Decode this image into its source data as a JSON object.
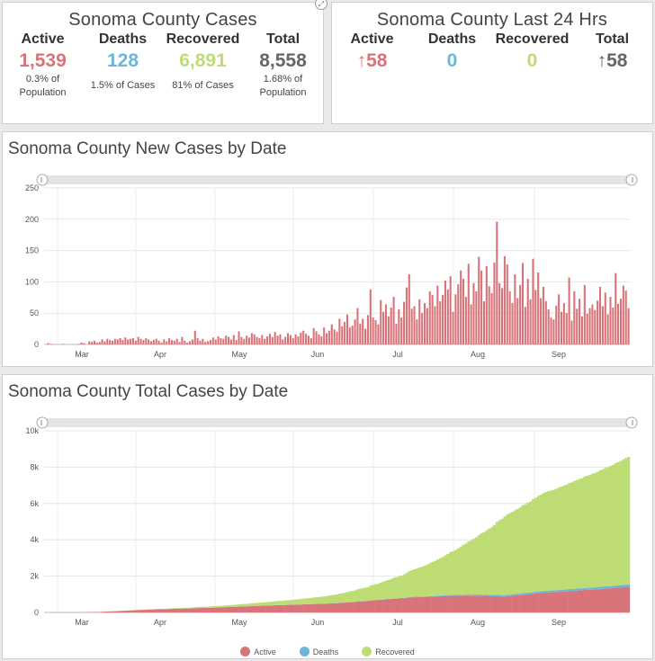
{
  "colors": {
    "active": "#d9737a",
    "deaths": "#6cb6d9",
    "recovered": "#bddd74",
    "gray": "#666666"
  },
  "cases": {
    "title": "Sonoma County Cases",
    "stats": [
      {
        "label": "Active",
        "value": "1,539",
        "sub1": "0.3% of",
        "sub2": "Population",
        "color": "#d9737a"
      },
      {
        "label": "Deaths",
        "value": "128",
        "sub1": "1.5% of Cases",
        "sub2": "",
        "color": "#6cb6d9"
      },
      {
        "label": "Recovered",
        "value": "6,891",
        "sub1": "81% of Cases",
        "sub2": "",
        "color": "#bddd74"
      },
      {
        "label": "Total",
        "value": "8,558",
        "sub1": "1.68% of",
        "sub2": "Population",
        "color": "#666666"
      }
    ]
  },
  "last24": {
    "title": "Sonoma County Last 24 Hrs",
    "stats": [
      {
        "label": "Active",
        "value": "↑58",
        "color": "#d9737a"
      },
      {
        "label": "Deaths",
        "value": "0",
        "color": "#6cb6d9"
      },
      {
        "label": "Recovered",
        "value": "0",
        "color": "#bddd74"
      },
      {
        "label": "Total",
        "value": "↑58",
        "color": "#666666"
      }
    ]
  },
  "new_cases": {
    "title": "Sonoma County New Cases by Date"
  },
  "total_cases": {
    "title": "Sonoma County Total Cases by Date"
  },
  "expand_icon": "⤢",
  "chart_data": [
    {
      "type": "bar",
      "title": "Sonoma County New Cases by Date",
      "x_ticks": [
        "Mar",
        "Apr",
        "May",
        "Jun",
        "Jul",
        "Aug",
        "Sep"
      ],
      "y_ticks": [
        "0",
        "50",
        "100",
        "150",
        "200",
        "250"
      ],
      "ylim": [
        0,
        250
      ],
      "date_range": [
        "2020-02-20",
        "2020-09-29"
      ],
      "series": [
        {
          "values": [
            0,
            2,
            1,
            0,
            0,
            0,
            0,
            1,
            0,
            0,
            0,
            0,
            0,
            1,
            3,
            2,
            0,
            5,
            4,
            6,
            3,
            4,
            8,
            5,
            9,
            7,
            6,
            9,
            8,
            10,
            7,
            11,
            8,
            9,
            10,
            6,
            12,
            9,
            7,
            10,
            8,
            5,
            7,
            9,
            6,
            3,
            8,
            5,
            10,
            7,
            6,
            9,
            4,
            12,
            6,
            3,
            5,
            8,
            22,
            10,
            6,
            9,
            4,
            5,
            7,
            11,
            8,
            13,
            10,
            9,
            14,
            12,
            8,
            15,
            7,
            21,
            12,
            9,
            14,
            11,
            18,
            16,
            12,
            10,
            15,
            9,
            13,
            17,
            12,
            20,
            14,
            16,
            8,
            12,
            18,
            15,
            10,
            16,
            13,
            19,
            22,
            17,
            14,
            10,
            26,
            21,
            16,
            13,
            27,
            18,
            22,
            32,
            24,
            20,
            41,
            29,
            36,
            48,
            27,
            30,
            40,
            58,
            33,
            41,
            25,
            47,
            88,
            43,
            39,
            32,
            71,
            52,
            64,
            45,
            59,
            76,
            33,
            56,
            43,
            68,
            91,
            112,
            57,
            61,
            40,
            72,
            50,
            66,
            58,
            85,
            79,
            61,
            94,
            69,
            79,
            102,
            88,
            109,
            52,
            80,
            96,
            118,
            105,
            76,
            129,
            64,
            98,
            85,
            140,
            118,
            69,
            125,
            93,
            82,
            131,
            196,
            98,
            90,
            141,
            128,
            85,
            66,
            112,
            74,
            95,
            130,
            60,
            105,
            72,
            137,
            87,
            115,
            74,
            92,
            69,
            56,
            43,
            40,
            62,
            80,
            52,
            66,
            50,
            107,
            38,
            85,
            57,
            73,
            45,
            95,
            49,
            58,
            64,
            55,
            70,
            92,
            61,
            83,
            48,
            76,
            59,
            114,
            65,
            73,
            94,
            86,
            58
          ]
        }
      ]
    },
    {
      "type": "area",
      "title": "Sonoma County Total Cases by Date",
      "x_ticks": [
        "Mar",
        "Apr",
        "May",
        "Jun",
        "Jul",
        "Aug",
        "Sep"
      ],
      "y_ticks": [
        "0",
        "2k",
        "4k",
        "6k",
        "8k",
        "10k"
      ],
      "ylim": [
        0,
        10000
      ],
      "date_range": [
        "2020-02-20",
        "2020-09-29"
      ],
      "stacked": true,
      "legend": [
        "Active",
        "Deaths",
        "Recovered"
      ],
      "final_values": {
        "active": 1539,
        "deaths": 128,
        "recovered": 6891,
        "total": 8558
      }
    }
  ]
}
